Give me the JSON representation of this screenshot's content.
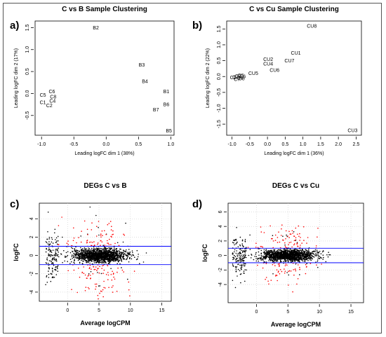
{
  "figure": {
    "panel_labels": [
      "a)",
      "b)",
      "c)",
      "d)"
    ]
  },
  "colors": {
    "points_base": "#000000",
    "points_de": "#ff0000",
    "threshold_lines": "#0000ff",
    "axes": "#000000",
    "grid": "#cccccc"
  },
  "chart_data": [
    {
      "type": "scatter",
      "title": "C vs B Sample Clustering",
      "xlabel": "Leading logFC dim 1 (38%)",
      "ylabel": "Leading logFC dim 2 (17%)",
      "xlim": [
        -1.1,
        1.05
      ],
      "ylim": [
        -0.95,
        1.65
      ],
      "xticks": [
        -1.0,
        -0.5,
        0.0,
        0.5,
        1.0
      ],
      "xtick_labels": [
        "-1.0",
        "-0.5",
        "0.0",
        "0.5",
        "1.0"
      ],
      "yticks": [
        -0.5,
        0.0,
        0.5,
        1.0,
        1.5
      ],
      "ytick_labels": [
        "-0.5",
        "0.0",
        "0.5",
        "1.0",
        "1.5"
      ],
      "marker": "text",
      "points": [
        {
          "label": "B2",
          "x": -0.16,
          "y": 1.5
        },
        {
          "label": "B3",
          "x": 0.55,
          "y": 0.65
        },
        {
          "label": "B4",
          "x": 0.6,
          "y": 0.28
        },
        {
          "label": "B1",
          "x": 0.93,
          "y": 0.05
        },
        {
          "label": "B6",
          "x": 0.93,
          "y": -0.25
        },
        {
          "label": "B7",
          "x": 0.77,
          "y": -0.37
        },
        {
          "label": "B5",
          "x": 0.97,
          "y": -0.85
        },
        {
          "label": "C6",
          "x": -0.84,
          "y": 0.05
        },
        {
          "label": "C5",
          "x": -0.98,
          "y": -0.03
        },
        {
          "label": "C8",
          "x": -0.82,
          "y": -0.07
        },
        {
          "label": "C4",
          "x": -0.83,
          "y": -0.17
        },
        {
          "label": "C1",
          "x": -0.98,
          "y": -0.2
        },
        {
          "label": "C2",
          "x": -0.88,
          "y": -0.27
        }
      ]
    },
    {
      "type": "scatter",
      "title": "C vs Cu Sample Clustering",
      "xlabel": "Leading logFC dim 1 (36%)",
      "ylabel": "Leading logFC dim 2 (22%)",
      "xlim": [
        -1.15,
        2.65
      ],
      "ylim": [
        -1.85,
        1.75
      ],
      "xticks": [
        -1.0,
        -0.5,
        0.0,
        0.5,
        1.0,
        1.5,
        2.0,
        2.5
      ],
      "xtick_labels": [
        "-1.0",
        "-0.5",
        "0.0",
        "0.5",
        "1.0",
        "1.5",
        "2.0",
        "2.5"
      ],
      "yticks": [
        -1.5,
        -1.0,
        -0.5,
        0.0,
        0.5,
        1.0,
        1.5
      ],
      "ytick_labels": [
        "-1.5",
        "-1.0",
        "-0.5",
        "0.0",
        "0.5",
        "1.0",
        "1.5"
      ],
      "marker": "text",
      "points": [
        {
          "label": "CU8",
          "x": 1.25,
          "y": 1.6
        },
        {
          "label": "CU1",
          "x": 0.8,
          "y": 0.75
        },
        {
          "label": "CU2",
          "x": 0.02,
          "y": 0.55
        },
        {
          "label": "CU7",
          "x": 0.62,
          "y": 0.5
        },
        {
          "label": "CU4",
          "x": 0.02,
          "y": 0.4
        },
        {
          "label": "CU6",
          "x": 0.2,
          "y": 0.2
        },
        {
          "label": "CU5",
          "x": -0.4,
          "y": 0.1
        },
        {
          "label": "CU3",
          "x": 2.4,
          "y": -1.7
        },
        {
          "label": "C1",
          "x": -0.97,
          "y": -0.03
        },
        {
          "label": "C2",
          "x": -0.9,
          "y": -0.02
        },
        {
          "label": "C3",
          "x": -0.83,
          "y": 0.02
        },
        {
          "label": "C4",
          "x": -0.78,
          "y": -0.04
        },
        {
          "label": "C5",
          "x": -0.75,
          "y": 0.04
        },
        {
          "label": "C6",
          "x": -0.7,
          "y": 0.0
        },
        {
          "label": "C7",
          "x": -0.86,
          "y": -0.08
        },
        {
          "label": "C8",
          "x": -0.73,
          "y": -0.06
        }
      ]
    },
    {
      "type": "scatter",
      "title": "DEGs C vs B",
      "xlabel": "Average logCPM",
      "ylabel": "logFC",
      "xlim": [
        -4.5,
        16.5
      ],
      "ylim": [
        -5.0,
        5.7
      ],
      "xticks": [
        0,
        5,
        10,
        15
      ],
      "xtick_labels": [
        "0",
        "5",
        "10",
        "15"
      ],
      "yticks": [
        -4,
        -2,
        0,
        2,
        4
      ],
      "ytick_labels": [
        "-4",
        "-2",
        "0",
        "2",
        "4"
      ],
      "grid": true,
      "hlines": [
        1,
        -1
      ],
      "distribution": {
        "n_points": 1800,
        "logcpm_range": [
          -3.6,
          13.5
        ],
        "logcpm_mode": 5.2,
        "de_threshold": 1.0,
        "max_abs_logfc": 5.5,
        "seed": 11
      }
    },
    {
      "type": "scatter",
      "title": "DEGs C vs Cu",
      "xlabel": "Average logCPM",
      "ylabel": "logFC",
      "xlim": [
        -4.5,
        17.0
      ],
      "ylim": [
        -6.5,
        7.2
      ],
      "xticks": [
        0,
        5,
        10,
        15
      ],
      "xtick_labels": [
        "0",
        "5",
        "10",
        "15"
      ],
      "yticks": [
        -4,
        -2,
        0,
        2,
        4,
        6
      ],
      "ytick_labels": [
        "-4",
        "-2",
        "0",
        "2",
        "4",
        "6"
      ],
      "grid": true,
      "hlines": [
        1,
        -1
      ],
      "distribution": {
        "n_points": 1800,
        "logcpm_range": [
          -3.8,
          14.5
        ],
        "logcpm_mode": 5.0,
        "de_threshold": 1.0,
        "max_abs_logfc": 7.0,
        "seed": 23
      }
    }
  ]
}
